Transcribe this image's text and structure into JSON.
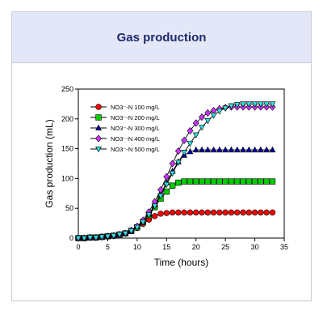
{
  "panel": {
    "title": "Gas production"
  },
  "chart_data": {
    "type": "line",
    "xlabel": "Time (hours)",
    "ylabel": "Gas production (mL)",
    "xlim": [
      0,
      35
    ],
    "ylim": [
      0,
      250
    ],
    "xticks": [
      0,
      5,
      10,
      15,
      20,
      25,
      30,
      35
    ],
    "yticks": [
      0,
      50,
      100,
      150,
      200,
      250
    ],
    "grid": false,
    "legend_position": "top-left",
    "x": [
      0,
      1,
      2,
      3,
      4,
      5,
      6,
      7,
      8,
      9,
      10,
      11,
      12,
      13,
      14,
      15,
      16,
      17,
      18,
      19,
      20,
      21,
      22,
      23,
      24,
      25,
      26,
      27,
      28,
      29,
      30,
      31,
      32,
      33
    ],
    "series": [
      {
        "name": "NO3⁻-N 100 mg/L",
        "color": "#ff0000",
        "marker": "circle",
        "values": [
          0,
          0,
          1,
          1,
          2,
          3,
          4,
          6,
          8,
          12,
          17,
          24,
          31,
          37,
          41,
          42,
          43,
          43,
          43,
          43,
          43,
          43,
          43,
          43,
          43,
          43,
          43,
          43,
          43,
          43,
          43,
          43,
          43,
          43
        ]
      },
      {
        "name": "NO3⁻-N 200 mg/L",
        "color": "#00cc00",
        "marker": "square",
        "values": [
          0,
          0,
          1,
          1,
          2,
          3,
          4,
          6,
          8,
          12,
          18,
          27,
          38,
          52,
          66,
          78,
          88,
          93,
          95,
          95,
          95,
          95,
          95,
          95,
          95,
          95,
          95,
          95,
          95,
          95,
          95,
          95,
          95,
          95
        ]
      },
      {
        "name": "NO3⁻-N 300 mg/L",
        "color": "#0000aa",
        "marker": "triangle",
        "values": [
          0,
          0,
          1,
          1,
          2,
          3,
          4,
          6,
          8,
          12,
          19,
          28,
          40,
          56,
          74,
          93,
          112,
          128,
          139,
          145,
          148,
          148,
          148,
          148,
          148,
          148,
          148,
          148,
          148,
          148,
          148,
          148,
          148,
          148
        ]
      },
      {
        "name": "NO3⁻-N 400 mg/L",
        "color": "#cc33ff",
        "marker": "diamond",
        "values": [
          0,
          0,
          1,
          1,
          2,
          3,
          4,
          6,
          8,
          13,
          20,
          30,
          44,
          61,
          81,
          103,
          125,
          146,
          164,
          180,
          193,
          203,
          210,
          214,
          217,
          219,
          220,
          220,
          220,
          220,
          220,
          220,
          220,
          220
        ]
      },
      {
        "name": "NO3⁻-N 500 mg/L",
        "color": "#33dddd",
        "marker": "invtriangle",
        "values": [
          0,
          0,
          1,
          1,
          2,
          3,
          4,
          6,
          8,
          12,
          18,
          27,
          39,
          54,
          71,
          90,
          109,
          127,
          144,
          159,
          173,
          186,
          197,
          206,
          213,
          218,
          222,
          224,
          225,
          225,
          225,
          225,
          225,
          225
        ]
      }
    ]
  }
}
